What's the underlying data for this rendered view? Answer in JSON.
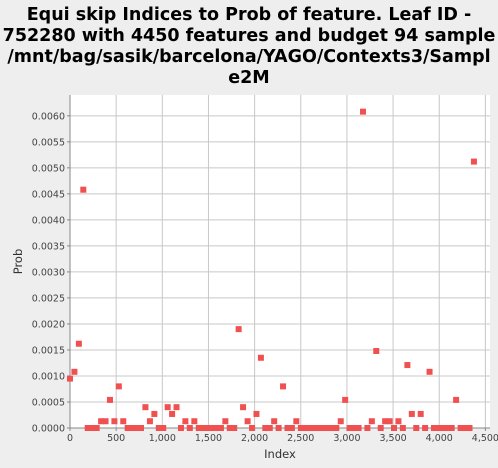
{
  "chart_data": {
    "type": "scatter",
    "title_lines": [
      "Equi skip Indices to Prob of feature. Leaf ID -",
      "752280 with 4450 features and budget 94 sample",
      "/mnt/bag/sasik/barcelona/YAGO/Contexts3/Sampl",
      "e2M"
    ],
    "xlabel": "Index",
    "ylabel": "Prob",
    "xlim": [
      0,
      4550
    ],
    "ylim": [
      0,
      0.0064
    ],
    "xticks": [
      0,
      500,
      1000,
      1500,
      2000,
      2500,
      3000,
      3500,
      4000,
      4500
    ],
    "xtick_labels": [
      "0",
      "500",
      "1,000",
      "1,500",
      "2,000",
      "2,500",
      "3,000",
      "3,500",
      "4,000",
      "4,500"
    ],
    "yticks": [
      0,
      0.0005,
      0.001,
      0.0015,
      0.002,
      0.0025,
      0.003,
      0.0035,
      0.004,
      0.0045,
      0.005,
      0.0055,
      0.006
    ],
    "ytick_labels": [
      "0.0000",
      "0.0005",
      "0.0010",
      "0.0015",
      "0.0020",
      "0.0025",
      "0.0030",
      "0.0035",
      "0.0040",
      "0.0045",
      "0.0050",
      "0.0055",
      "0.0060"
    ],
    "grid": true,
    "marker_color": "#f05050",
    "plot_background": "#ffffff",
    "grid_color": "#c8c8c8",
    "points": [
      [
        0,
        0.00095
      ],
      [
        48,
        0.00108
      ],
      [
        96,
        0.00162
      ],
      [
        144,
        0.00458
      ],
      [
        192,
        0
      ],
      [
        240,
        0
      ],
      [
        289,
        0
      ],
      [
        337,
        0.00013
      ],
      [
        385,
        0.00013
      ],
      [
        433,
        0.00054
      ],
      [
        481,
        0.00013
      ],
      [
        529,
        0.0008
      ],
      [
        577,
        0.00013
      ],
      [
        625,
        0
      ],
      [
        673,
        0
      ],
      [
        721,
        0
      ],
      [
        769,
        0
      ],
      [
        817,
        0.0004
      ],
      [
        866,
        0.00013
      ],
      [
        914,
        0.00027
      ],
      [
        962,
        0
      ],
      [
        1010,
        0
      ],
      [
        1058,
        0.0004
      ],
      [
        1106,
        0.00027
      ],
      [
        1154,
        0.0004
      ],
      [
        1202,
        0
      ],
      [
        1250,
        0.00013
      ],
      [
        1298,
        0
      ],
      [
        1347,
        0.00013
      ],
      [
        1395,
        0
      ],
      [
        1443,
        0
      ],
      [
        1491,
        0
      ],
      [
        1539,
        0
      ],
      [
        1587,
        0
      ],
      [
        1635,
        0
      ],
      [
        1683,
        0.00013
      ],
      [
        1731,
        0
      ],
      [
        1779,
        0
      ],
      [
        1827,
        0.0019
      ],
      [
        1875,
        0.0004
      ],
      [
        1924,
        0.00013
      ],
      [
        1972,
        0
      ],
      [
        2020,
        0.00027
      ],
      [
        2068,
        0.00135
      ],
      [
        2116,
        0
      ],
      [
        2164,
        0
      ],
      [
        2212,
        0.00013
      ],
      [
        2260,
        0
      ],
      [
        2308,
        0.0008
      ],
      [
        2356,
        0
      ],
      [
        2404,
        0
      ],
      [
        2452,
        0.00013
      ],
      [
        2501,
        0
      ],
      [
        2549,
        0
      ],
      [
        2597,
        0
      ],
      [
        2645,
        0
      ],
      [
        2693,
        0
      ],
      [
        2741,
        0
      ],
      [
        2789,
        0
      ],
      [
        2837,
        0
      ],
      [
        2885,
        0
      ],
      [
        2933,
        0.00013
      ],
      [
        2981,
        0.00054
      ],
      [
        3029,
        0
      ],
      [
        3078,
        0
      ],
      [
        3126,
        0
      ],
      [
        3174,
        0.00608
      ],
      [
        3222,
        0
      ],
      [
        3270,
        0.00013
      ],
      [
        3318,
        0.00148
      ],
      [
        3366,
        0
      ],
      [
        3414,
        0.00013
      ],
      [
        3462,
        0.00013
      ],
      [
        3510,
        0
      ],
      [
        3558,
        0.00013
      ],
      [
        3606,
        0
      ],
      [
        3655,
        0.00121
      ],
      [
        3703,
        0.00027
      ],
      [
        3751,
        0
      ],
      [
        3799,
        0.00027
      ],
      [
        3847,
        0
      ],
      [
        3895,
        0.00108
      ],
      [
        3943,
        0
      ],
      [
        3991,
        0
      ],
      [
        4039,
        0
      ],
      [
        4087,
        0
      ],
      [
        4135,
        0
      ],
      [
        4183,
        0.00054
      ],
      [
        4232,
        0
      ],
      [
        4280,
        0
      ],
      [
        4328,
        0
      ],
      [
        4376,
        0.00512
      ]
    ]
  }
}
